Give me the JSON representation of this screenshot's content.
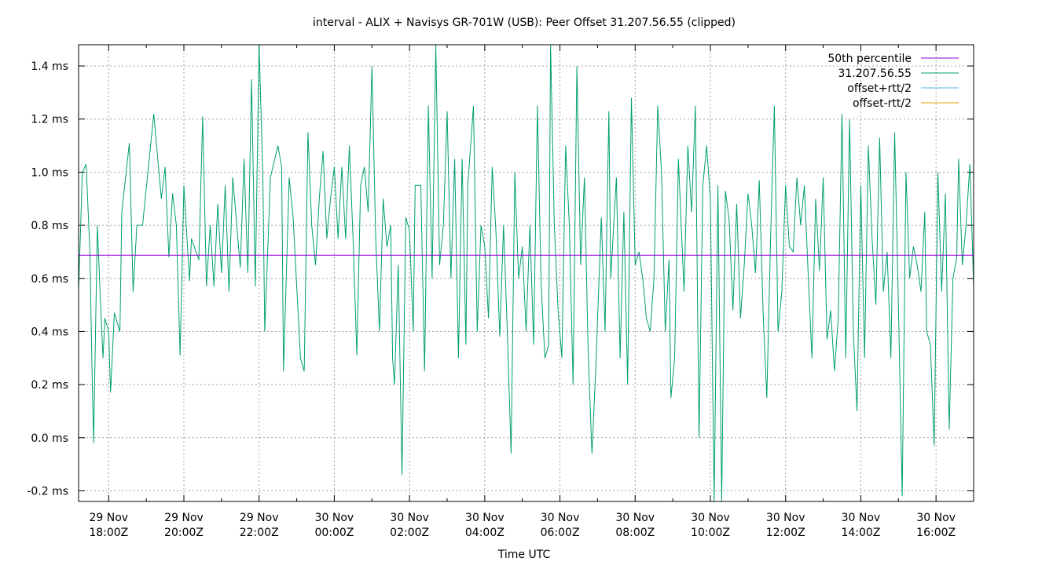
{
  "chart_data": {
    "type": "line",
    "title": "interval - ALIX + Navisys GR-701W (USB): Peer Offset 31.207.56.55 (clipped)",
    "xlabel": "Time UTC",
    "ylabel": "",
    "x_unit": "hours",
    "xlim": [
      -0.8,
      23.0
    ],
    "ylim": [
      -0.24,
      1.48
    ],
    "y_ticks": [
      {
        "value": 1.4,
        "label": "1.4 ms"
      },
      {
        "value": 1.2,
        "label": "1.2 ms"
      },
      {
        "value": 1.0,
        "label": "1.0 ms"
      },
      {
        "value": 0.8,
        "label": "0.8 ms"
      },
      {
        "value": 0.6,
        "label": "0.6 ms"
      },
      {
        "value": 0.4,
        "label": "0.4 ms"
      },
      {
        "value": 0.2,
        "label": "0.2 ms"
      },
      {
        "value": 0.0,
        "label": "0.0 ms"
      },
      {
        "value": -0.2,
        "label": "-0.2 ms"
      }
    ],
    "x_ticks": [
      {
        "value": 0,
        "line1": "29 Nov",
        "line2": "18:00Z"
      },
      {
        "value": 2,
        "line1": "29 Nov",
        "line2": "20:00Z"
      },
      {
        "value": 4,
        "line1": "29 Nov",
        "line2": "22:00Z"
      },
      {
        "value": 6,
        "line1": "30 Nov",
        "line2": "00:00Z"
      },
      {
        "value": 8,
        "line1": "30 Nov",
        "line2": "02:00Z"
      },
      {
        "value": 10,
        "line1": "30 Nov",
        "line2": "04:00Z"
      },
      {
        "value": 12,
        "line1": "30 Nov",
        "line2": "06:00Z"
      },
      {
        "value": 14,
        "line1": "30 Nov",
        "line2": "08:00Z"
      },
      {
        "value": 16,
        "line1": "30 Nov",
        "line2": "10:00Z"
      },
      {
        "value": 18,
        "line1": "30 Nov",
        "line2": "12:00Z"
      },
      {
        "value": 20,
        "line1": "30 Nov",
        "line2": "14:00Z"
      },
      {
        "value": 22,
        "line1": "30 Nov",
        "line2": "16:00Z"
      }
    ],
    "grid": true,
    "legend_position": "top-right",
    "series": [
      {
        "name": "50th percentile",
        "color": "#9400d3",
        "points": [
          [
            -0.8,
            0.687
          ],
          [
            23.0,
            0.687
          ]
        ]
      },
      {
        "name": "31.207.56.55",
        "color": "#009e73",
        "points": [
          [
            -0.8,
            0.55
          ],
          [
            -0.7,
            1.0
          ],
          [
            -0.6,
            1.03
          ],
          [
            -0.5,
            0.7
          ],
          [
            -0.45,
            0.3
          ],
          [
            -0.4,
            -0.02
          ],
          [
            -0.3,
            0.8
          ],
          [
            -0.2,
            0.45
          ],
          [
            -0.15,
            0.3
          ],
          [
            -0.1,
            0.45
          ],
          [
            0.0,
            0.4
          ],
          [
            0.05,
            0.17
          ],
          [
            0.15,
            0.47
          ],
          [
            0.3,
            0.4
          ],
          [
            0.35,
            0.85
          ],
          [
            0.55,
            1.11
          ],
          [
            0.65,
            0.55
          ],
          [
            0.75,
            0.8
          ],
          [
            0.9,
            0.8
          ],
          [
            1.2,
            1.22
          ],
          [
            1.4,
            0.9
          ],
          [
            1.5,
            1.02
          ],
          [
            1.6,
            0.68
          ],
          [
            1.7,
            0.92
          ],
          [
            1.8,
            0.8
          ],
          [
            1.9,
            0.31
          ],
          [
            2.0,
            0.95
          ],
          [
            2.15,
            0.59
          ],
          [
            2.2,
            0.75
          ],
          [
            2.4,
            0.67
          ],
          [
            2.5,
            1.21
          ],
          [
            2.6,
            0.57
          ],
          [
            2.7,
            0.8
          ],
          [
            2.8,
            0.57
          ],
          [
            2.9,
            0.88
          ],
          [
            3.0,
            0.62
          ],
          [
            3.1,
            0.95
          ],
          [
            3.2,
            0.55
          ],
          [
            3.3,
            0.98
          ],
          [
            3.5,
            0.64
          ],
          [
            3.6,
            1.05
          ],
          [
            3.7,
            0.62
          ],
          [
            3.8,
            1.35
          ],
          [
            3.9,
            0.57
          ],
          [
            4.0,
            1.48
          ],
          [
            4.1,
            0.98
          ],
          [
            4.15,
            0.4
          ],
          [
            4.3,
            0.98
          ],
          [
            4.5,
            1.1
          ],
          [
            4.6,
            1.02
          ],
          [
            4.65,
            0.25
          ],
          [
            4.8,
            0.98
          ],
          [
            4.9,
            0.84
          ],
          [
            5.1,
            0.3
          ],
          [
            5.2,
            0.25
          ],
          [
            5.3,
            1.15
          ],
          [
            5.4,
            0.8
          ],
          [
            5.5,
            0.65
          ],
          [
            5.6,
            0.9
          ],
          [
            5.7,
            1.08
          ],
          [
            5.8,
            0.75
          ],
          [
            5.9,
            0.9
          ],
          [
            6.0,
            1.02
          ],
          [
            6.1,
            0.75
          ],
          [
            6.2,
            1.02
          ],
          [
            6.3,
            0.75
          ],
          [
            6.4,
            1.1
          ],
          [
            6.5,
            0.74
          ],
          [
            6.6,
            0.31
          ],
          [
            6.7,
            0.95
          ],
          [
            6.8,
            1.02
          ],
          [
            6.9,
            0.85
          ],
          [
            7.0,
            1.4
          ],
          [
            7.1,
            0.75
          ],
          [
            7.2,
            0.4
          ],
          [
            7.3,
            0.9
          ],
          [
            7.4,
            0.72
          ],
          [
            7.5,
            0.8
          ],
          [
            7.55,
            0.3
          ],
          [
            7.6,
            0.2
          ],
          [
            7.7,
            0.65
          ],
          [
            7.8,
            -0.14
          ],
          [
            7.9,
            0.83
          ],
          [
            8.0,
            0.78
          ],
          [
            8.1,
            0.4
          ],
          [
            8.15,
            0.95
          ],
          [
            8.3,
            0.95
          ],
          [
            8.4,
            0.25
          ],
          [
            8.5,
            1.25
          ],
          [
            8.6,
            0.6
          ],
          [
            8.7,
            1.48
          ],
          [
            8.8,
            0.65
          ],
          [
            8.9,
            0.8
          ],
          [
            9.0,
            1.23
          ],
          [
            9.1,
            0.6
          ],
          [
            9.2,
            1.05
          ],
          [
            9.3,
            0.3
          ],
          [
            9.4,
            1.05
          ],
          [
            9.5,
            0.35
          ],
          [
            9.55,
            0.95
          ],
          [
            9.7,
            1.25
          ],
          [
            9.8,
            0.4
          ],
          [
            9.9,
            0.8
          ],
          [
            10.0,
            0.72
          ],
          [
            10.1,
            0.45
          ],
          [
            10.2,
            1.02
          ],
          [
            10.3,
            0.77
          ],
          [
            10.4,
            0.38
          ],
          [
            10.5,
            0.8
          ],
          [
            10.6,
            0.4
          ],
          [
            10.7,
            -0.06
          ],
          [
            10.8,
            1.0
          ],
          [
            10.9,
            0.6
          ],
          [
            11.0,
            0.72
          ],
          [
            11.1,
            0.4
          ],
          [
            11.2,
            0.8
          ],
          [
            11.3,
            0.35
          ],
          [
            11.4,
            1.25
          ],
          [
            11.5,
            0.58
          ],
          [
            11.6,
            0.3
          ],
          [
            11.7,
            0.35
          ],
          [
            11.75,
            1.48
          ],
          [
            11.85,
            0.8
          ],
          [
            11.95,
            0.48
          ],
          [
            12.05,
            0.3
          ],
          [
            12.15,
            1.1
          ],
          [
            12.25,
            0.8
          ],
          [
            12.35,
            0.2
          ],
          [
            12.45,
            1.4
          ],
          [
            12.55,
            0.65
          ],
          [
            12.65,
            0.98
          ],
          [
            12.75,
            0.32
          ],
          [
            12.85,
            -0.06
          ],
          [
            12.95,
            0.25
          ],
          [
            13.1,
            0.83
          ],
          [
            13.2,
            0.4
          ],
          [
            13.3,
            1.23
          ],
          [
            13.35,
            0.6
          ],
          [
            13.5,
            0.98
          ],
          [
            13.6,
            0.3
          ],
          [
            13.7,
            0.85
          ],
          [
            13.8,
            0.2
          ],
          [
            13.9,
            1.28
          ],
          [
            14.0,
            0.65
          ],
          [
            14.1,
            0.7
          ],
          [
            14.2,
            0.6
          ],
          [
            14.3,
            0.45
          ],
          [
            14.4,
            0.4
          ],
          [
            14.5,
            0.6
          ],
          [
            14.6,
            1.25
          ],
          [
            14.7,
            1.0
          ],
          [
            14.8,
            0.4
          ],
          [
            14.9,
            0.67
          ],
          [
            14.95,
            0.15
          ],
          [
            15.05,
            0.3
          ],
          [
            15.15,
            1.05
          ],
          [
            15.3,
            0.55
          ],
          [
            15.4,
            1.1
          ],
          [
            15.5,
            0.85
          ],
          [
            15.6,
            1.25
          ],
          [
            15.7,
            0.0
          ],
          [
            15.8,
            0.95
          ],
          [
            15.9,
            1.1
          ],
          [
            16.0,
            0.9
          ],
          [
            16.1,
            -0.24
          ],
          [
            16.2,
            0.95
          ],
          [
            16.3,
            -0.24
          ],
          [
            16.4,
            0.93
          ],
          [
            16.5,
            0.82
          ],
          [
            16.6,
            0.48
          ],
          [
            16.7,
            0.88
          ],
          [
            16.8,
            0.45
          ],
          [
            16.9,
            0.65
          ],
          [
            17.0,
            0.92
          ],
          [
            17.1,
            0.8
          ],
          [
            17.2,
            0.62
          ],
          [
            17.3,
            0.97
          ],
          [
            17.4,
            0.48
          ],
          [
            17.5,
            0.15
          ],
          [
            17.6,
            0.75
          ],
          [
            17.7,
            1.25
          ],
          [
            17.8,
            0.4
          ],
          [
            17.9,
            0.55
          ],
          [
            18.0,
            0.95
          ],
          [
            18.1,
            0.72
          ],
          [
            18.2,
            0.7
          ],
          [
            18.3,
            0.98
          ],
          [
            18.4,
            0.8
          ],
          [
            18.5,
            0.95
          ],
          [
            18.6,
            0.62
          ],
          [
            18.7,
            0.3
          ],
          [
            18.8,
            0.9
          ],
          [
            18.9,
            0.63
          ],
          [
            19.0,
            0.98
          ],
          [
            19.1,
            0.37
          ],
          [
            19.2,
            0.48
          ],
          [
            19.3,
            0.25
          ],
          [
            19.4,
            0.45
          ],
          [
            19.5,
            1.22
          ],
          [
            19.6,
            0.3
          ],
          [
            19.7,
            1.2
          ],
          [
            19.8,
            0.4
          ],
          [
            19.9,
            0.1
          ],
          [
            20.0,
            0.95
          ],
          [
            20.1,
            0.3
          ],
          [
            20.2,
            1.1
          ],
          [
            20.3,
            0.75
          ],
          [
            20.4,
            0.5
          ],
          [
            20.5,
            1.13
          ],
          [
            20.6,
            0.55
          ],
          [
            20.7,
            0.7
          ],
          [
            20.8,
            0.3
          ],
          [
            20.9,
            1.15
          ],
          [
            21.0,
            0.5
          ],
          [
            21.1,
            -0.22
          ],
          [
            21.2,
            1.0
          ],
          [
            21.3,
            0.6
          ],
          [
            21.4,
            0.72
          ],
          [
            21.5,
            0.65
          ],
          [
            21.6,
            0.55
          ],
          [
            21.7,
            0.85
          ],
          [
            21.75,
            0.4
          ],
          [
            21.85,
            0.35
          ],
          [
            21.95,
            -0.03
          ],
          [
            22.05,
            1.0
          ],
          [
            22.15,
            0.55
          ],
          [
            22.25,
            0.92
          ],
          [
            22.35,
            0.03
          ],
          [
            22.45,
            0.6
          ],
          [
            22.55,
            0.68
          ],
          [
            22.6,
            1.05
          ],
          [
            22.7,
            0.65
          ],
          [
            22.8,
            0.8
          ],
          [
            22.9,
            1.03
          ],
          [
            23.0,
            0.57
          ]
        ]
      },
      {
        "name": "offset+rtt/2",
        "color": "#56b4e9",
        "points": []
      },
      {
        "name": "offset-rtt/2",
        "color": "#e69f00",
        "points": []
      }
    ]
  }
}
